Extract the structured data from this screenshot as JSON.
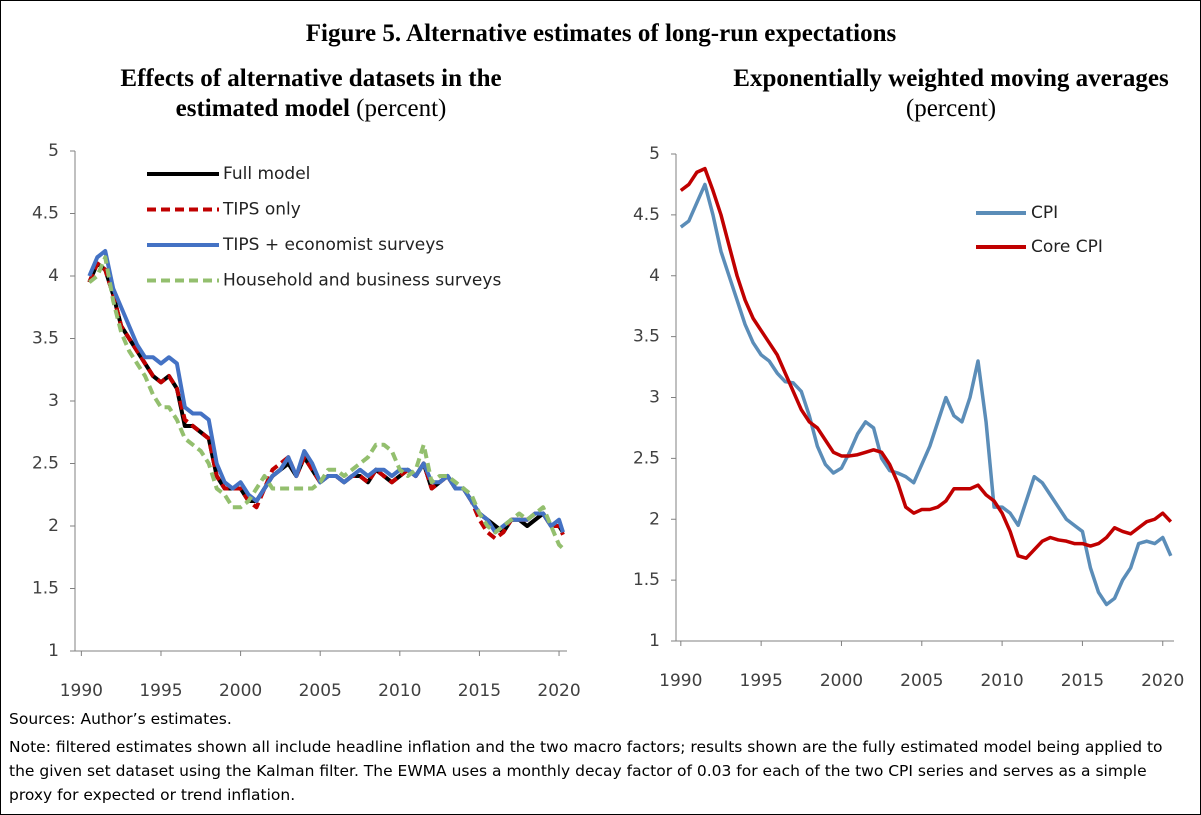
{
  "title": "Figure 5. Alternative estimates of long-run expectations",
  "sources": "Sources: Author’s estimates.",
  "note": "Note: filtered estimates shown all include headline inflation and the two macro factors; results shown are the fully estimated model being applied to the given set dataset using the Kalman filter. The EWMA uses a monthly decay factor of 0.03 for each of the two CPI series and serves as a simple proxy for expected or trend inflation.",
  "chart_data": [
    {
      "type": "line",
      "title_lines": [
        "Effects of alternative datasets in the",
        "estimated model"
      ],
      "units": "(percent)",
      "legend": "upper left",
      "xlim": [
        1989.6,
        2020.5
      ],
      "xticks": [
        1990,
        1995,
        2000,
        2005,
        2010,
        2015,
        2020
      ],
      "ylim": [
        1,
        5
      ],
      "yticks": [
        1,
        1.5,
        2,
        2.5,
        3,
        3.5,
        4,
        4.5,
        5
      ],
      "x": [
        1990.5,
        1991,
        1991.5,
        1992,
        1992.5,
        1993,
        1993.5,
        1994,
        1994.5,
        1995,
        1995.5,
        1996,
        1996.5,
        1997,
        1997.5,
        1998,
        1998.5,
        1999,
        1999.5,
        2000,
        2000.5,
        2001,
        2001.5,
        2002,
        2002.5,
        2003,
        2003.5,
        2004,
        2004.5,
        2005,
        2005.5,
        2006,
        2006.5,
        2007,
        2007.5,
        2008,
        2008.5,
        2009,
        2009.5,
        2010,
        2010.5,
        2011,
        2011.5,
        2012,
        2012.5,
        2013,
        2013.5,
        2014,
        2014.5,
        2015,
        2015.5,
        2016,
        2016.5,
        2017,
        2017.5,
        2018,
        2018.5,
        2019,
        2019.5,
        2020,
        2020.25
      ],
      "series": [
        {
          "name": "Full model",
          "color": "#000000",
          "line_style": "solid",
          "values": [
            3.95,
            4.1,
            4.05,
            3.85,
            3.6,
            3.5,
            3.4,
            3.3,
            3.2,
            3.15,
            3.2,
            3.1,
            2.8,
            2.8,
            2.75,
            2.7,
            2.4,
            2.3,
            2.3,
            2.3,
            2.2,
            2.2,
            2.3,
            2.4,
            2.45,
            2.5,
            2.4,
            2.55,
            2.45,
            2.35,
            2.4,
            2.4,
            2.35,
            2.4,
            2.4,
            2.35,
            2.45,
            2.4,
            2.35,
            2.4,
            2.45,
            2.4,
            2.5,
            2.3,
            2.35,
            2.4,
            2.3,
            2.3,
            2.2,
            2.1,
            2.05,
            2.0,
            1.95,
            2.05,
            2.05,
            2.0,
            2.05,
            2.1,
            2.0,
            2.0,
            1.95
          ]
        },
        {
          "name": "TIPS only",
          "color": "#c00000",
          "line_style": "dashed",
          "values": [
            3.95,
            4.1,
            4.05,
            3.85,
            3.6,
            3.5,
            3.4,
            3.3,
            3.2,
            3.15,
            3.2,
            3.1,
            2.85,
            2.8,
            2.75,
            2.7,
            2.4,
            2.3,
            2.3,
            2.3,
            2.2,
            2.15,
            2.3,
            2.45,
            2.5,
            2.55,
            2.4,
            2.55,
            2.45,
            2.35,
            2.4,
            2.4,
            2.35,
            2.4,
            2.4,
            2.35,
            2.45,
            2.4,
            2.35,
            2.4,
            2.45,
            2.4,
            2.5,
            2.3,
            2.35,
            2.4,
            2.3,
            2.3,
            2.2,
            2.05,
            1.95,
            1.9,
            1.95,
            2.05,
            2.05,
            2.05,
            2.1,
            2.1,
            2.0,
            2.0,
            1.93
          ]
        },
        {
          "name": "TIPS + economist surveys",
          "color": "#4472c4",
          "line_style": "solid",
          "values": [
            4.0,
            4.15,
            4.2,
            3.9,
            3.75,
            3.6,
            3.45,
            3.35,
            3.35,
            3.3,
            3.35,
            3.3,
            2.95,
            2.9,
            2.9,
            2.85,
            2.5,
            2.35,
            2.3,
            2.35,
            2.25,
            2.2,
            2.3,
            2.4,
            2.45,
            2.55,
            2.4,
            2.6,
            2.5,
            2.35,
            2.4,
            2.4,
            2.35,
            2.4,
            2.45,
            2.4,
            2.45,
            2.45,
            2.4,
            2.45,
            2.45,
            2.4,
            2.5,
            2.35,
            2.35,
            2.4,
            2.3,
            2.3,
            2.2,
            2.1,
            2.05,
            1.95,
            2.0,
            2.05,
            2.05,
            2.05,
            2.1,
            2.1,
            2.0,
            2.05,
            1.95
          ]
        },
        {
          "name": "Household and business surveys",
          "color": "#93bf6e",
          "line_style": "dashed",
          "values": [
            3.95,
            4.0,
            4.15,
            3.8,
            3.55,
            3.4,
            3.3,
            3.2,
            3.05,
            2.95,
            2.95,
            2.85,
            2.7,
            2.65,
            2.6,
            2.5,
            2.3,
            2.25,
            2.15,
            2.15,
            2.2,
            2.3,
            2.4,
            2.3,
            2.3,
            2.3,
            2.3,
            2.3,
            2.3,
            2.35,
            2.45,
            2.45,
            2.4,
            2.45,
            2.5,
            2.55,
            2.65,
            2.65,
            2.6,
            2.45,
            2.4,
            2.45,
            2.65,
            2.35,
            2.4,
            2.4,
            2.35,
            2.3,
            2.25,
            2.1,
            2.0,
            1.95,
            2.0,
            2.05,
            2.1,
            2.05,
            2.1,
            2.15,
            2.0,
            1.85,
            1.82
          ]
        }
      ]
    },
    {
      "type": "line",
      "title_lines": [
        "Exponentially weighted moving averages"
      ],
      "units": "(percent)",
      "legend": "upper right",
      "xlim": [
        1989.7,
        2020.7
      ],
      "xticks": [
        1990,
        1995,
        2000,
        2005,
        2010,
        2015,
        2020
      ],
      "ylim": [
        1,
        5
      ],
      "yticks": [
        1,
        1.5,
        2,
        2.5,
        3,
        3.5,
        4,
        4.5,
        5
      ],
      "x": [
        1990,
        1990.5,
        1991,
        1991.5,
        1992,
        1992.5,
        1993,
        1993.5,
        1994,
        1994.5,
        1995,
        1995.5,
        1996,
        1996.5,
        1997,
        1997.5,
        1998,
        1998.5,
        1999,
        1999.5,
        2000,
        2000.5,
        2001,
        2001.5,
        2002,
        2002.5,
        2003,
        2003.5,
        2004,
        2004.5,
        2005,
        2005.5,
        2006,
        2006.5,
        2007,
        2007.5,
        2008,
        2008.5,
        2009,
        2009.5,
        2010,
        2010.5,
        2011,
        2011.5,
        2012,
        2012.5,
        2013,
        2013.5,
        2014,
        2014.5,
        2015,
        2015.5,
        2016,
        2016.5,
        2017,
        2017.5,
        2018,
        2018.5,
        2019,
        2019.5,
        2020,
        2020.5
      ],
      "series": [
        {
          "name": "CPI",
          "color": "#5b8db8",
          "line_style": "solid",
          "values": [
            4.4,
            4.45,
            4.6,
            4.75,
            4.5,
            4.2,
            4.0,
            3.8,
            3.6,
            3.45,
            3.35,
            3.3,
            3.2,
            3.13,
            3.12,
            3.05,
            2.85,
            2.6,
            2.45,
            2.38,
            2.42,
            2.55,
            2.7,
            2.8,
            2.75,
            2.5,
            2.4,
            2.38,
            2.35,
            2.3,
            2.45,
            2.6,
            2.8,
            3.0,
            2.85,
            2.8,
            3.0,
            3.3,
            2.8,
            2.1,
            2.1,
            2.05,
            1.95,
            2.15,
            2.35,
            2.3,
            2.2,
            2.1,
            2.0,
            1.95,
            1.9,
            1.6,
            1.4,
            1.3,
            1.35,
            1.5,
            1.6,
            1.8,
            1.82,
            1.8,
            1.85,
            1.7
          ]
        },
        {
          "name": "Core CPI",
          "color": "#c00000",
          "line_style": "solid",
          "values": [
            4.7,
            4.75,
            4.85,
            4.88,
            4.7,
            4.5,
            4.25,
            4.0,
            3.8,
            3.65,
            3.55,
            3.45,
            3.35,
            3.2,
            3.05,
            2.9,
            2.8,
            2.75,
            2.65,
            2.55,
            2.52,
            2.52,
            2.53,
            2.55,
            2.57,
            2.55,
            2.45,
            2.3,
            2.1,
            2.05,
            2.08,
            2.08,
            2.1,
            2.15,
            2.25,
            2.25,
            2.25,
            2.28,
            2.2,
            2.15,
            2.05,
            1.9,
            1.7,
            1.68,
            1.75,
            1.82,
            1.85,
            1.83,
            1.82,
            1.8,
            1.8,
            1.78,
            1.8,
            1.85,
            1.93,
            1.9,
            1.88,
            1.93,
            1.98,
            2.0,
            2.05,
            1.98
          ]
        }
      ]
    }
  ]
}
